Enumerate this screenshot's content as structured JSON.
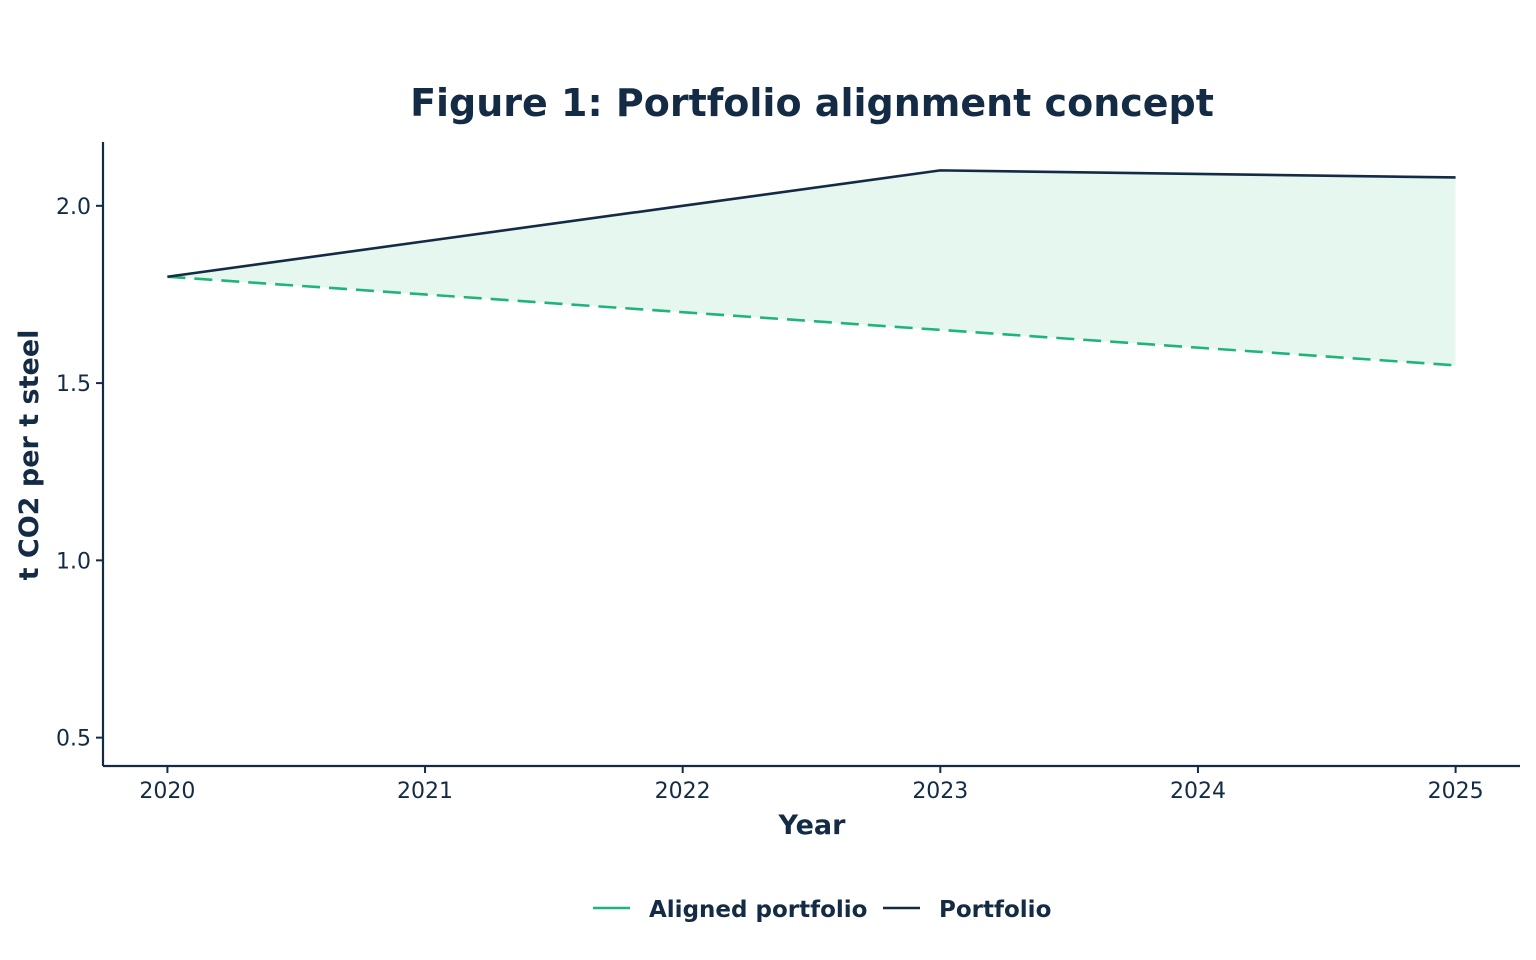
{
  "chart_data": {
    "type": "line",
    "title": "Figure 1: Portfolio alignment concept",
    "xlabel": "Year",
    "ylabel": "t CO2 per t steel",
    "x": [
      2020,
      2021,
      2022,
      2023,
      2024,
      2025
    ],
    "x_tick_labels": [
      "2020",
      "2021",
      "2022",
      "2023",
      "2024",
      "2025"
    ],
    "y_ticks": [
      0.5,
      1.0,
      1.5,
      2.0
    ],
    "y_tick_labels": [
      "0.5",
      "1.0",
      "1.5",
      "2.0"
    ],
    "xlim": [
      2019.75,
      2025.25
    ],
    "ylim": [
      0.42,
      2.18
    ],
    "grid": false,
    "legend_position": "bottom",
    "series": [
      {
        "name": "Aligned portfolio",
        "values": [
          1.8,
          1.75,
          1.7,
          1.65,
          1.6,
          1.55
        ],
        "color": "#1fb57a",
        "style": "dashed"
      },
      {
        "name": "Portfolio",
        "values": [
          1.8,
          1.9,
          2.0,
          2.1,
          2.09,
          2.08
        ],
        "color": "#142b45",
        "style": "solid"
      }
    ],
    "fill_between": {
      "series": [
        "Aligned portfolio",
        "Portfolio"
      ],
      "color": "#e6f7ef"
    }
  }
}
